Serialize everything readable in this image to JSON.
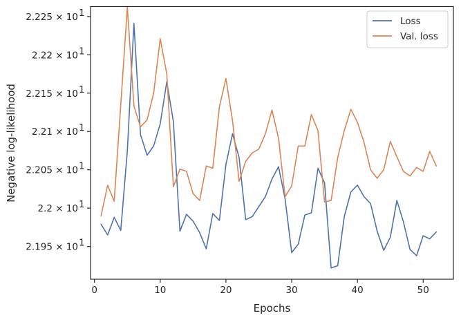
{
  "chart_data": {
    "type": "line",
    "title": "",
    "xlabel": "Epochs",
    "ylabel": "Negative log-likelihood",
    "xlim": [
      -0.6,
      54.6
    ],
    "ylim": [
      21.9073,
      22.2629
    ],
    "x_ticks": [
      0,
      10,
      20,
      30,
      40,
      50
    ],
    "y_ticks": [
      {
        "value": 21.95,
        "label": "2.195 × 10",
        "exp": "1"
      },
      {
        "value": 22.0,
        "label": "2.2 × 10",
        "exp": "1"
      },
      {
        "value": 22.05,
        "label": "2.205 × 10",
        "exp": "1"
      },
      {
        "value": 22.1,
        "label": "2.21 × 10",
        "exp": "1"
      },
      {
        "value": 22.15,
        "label": "2.215 × 10",
        "exp": "1"
      },
      {
        "value": 22.2,
        "label": "2.22 × 10",
        "exp": "1"
      },
      {
        "value": 22.25,
        "label": "2.225 × 10",
        "exp": "1"
      }
    ],
    "grid": false,
    "legend_position": "top-right",
    "x": [
      1,
      2,
      3,
      4,
      5,
      6,
      7,
      8,
      9,
      10,
      11,
      12,
      13,
      14,
      15,
      16,
      17,
      18,
      19,
      20,
      21,
      22,
      23,
      24,
      25,
      26,
      27,
      28,
      29,
      30,
      31,
      32,
      33,
      34,
      35,
      36,
      37,
      38,
      39,
      40,
      41,
      42,
      43,
      44,
      45,
      46,
      47,
      48,
      49,
      50,
      51,
      52
    ],
    "series": [
      {
        "name": "Loss",
        "color": "#4c72b0",
        "values": [
          21.979,
          21.965,
          21.988,
          21.971,
          22.075,
          22.241,
          22.096,
          22.069,
          22.081,
          22.11,
          22.165,
          22.113,
          21.97,
          21.992,
          21.983,
          21.968,
          21.947,
          21.993,
          21.984,
          22.057,
          22.097,
          22.066,
          21.985,
          21.989,
          22.002,
          22.015,
          22.038,
          22.054,
          22.012,
          21.942,
          21.953,
          21.991,
          21.994,
          22.052,
          22.033,
          21.922,
          21.925,
          21.989,
          22.021,
          22.03,
          22.015,
          22.006,
          21.97,
          21.945,
          21.962,
          22.01,
          21.982,
          21.946,
          21.938,
          21.964,
          21.96,
          21.969
        ]
      },
      {
        "name": "Val. loss",
        "color": "#dd8452",
        "values": [
          21.99,
          22.03,
          22.009,
          22.135,
          22.262,
          22.133,
          22.106,
          22.115,
          22.15,
          22.221,
          22.175,
          22.028,
          22.051,
          22.048,
          22.019,
          22.01,
          22.055,
          22.052,
          22.132,
          22.169,
          22.114,
          22.035,
          22.061,
          22.072,
          22.077,
          22.097,
          22.128,
          22.091,
          22.015,
          22.029,
          22.081,
          22.081,
          22.122,
          22.101,
          22.008,
          22.01,
          22.066,
          22.101,
          22.129,
          22.112,
          22.086,
          22.05,
          22.039,
          22.05,
          22.087,
          22.067,
          22.048,
          22.042,
          22.053,
          22.048,
          22.074,
          22.055
        ]
      }
    ]
  }
}
